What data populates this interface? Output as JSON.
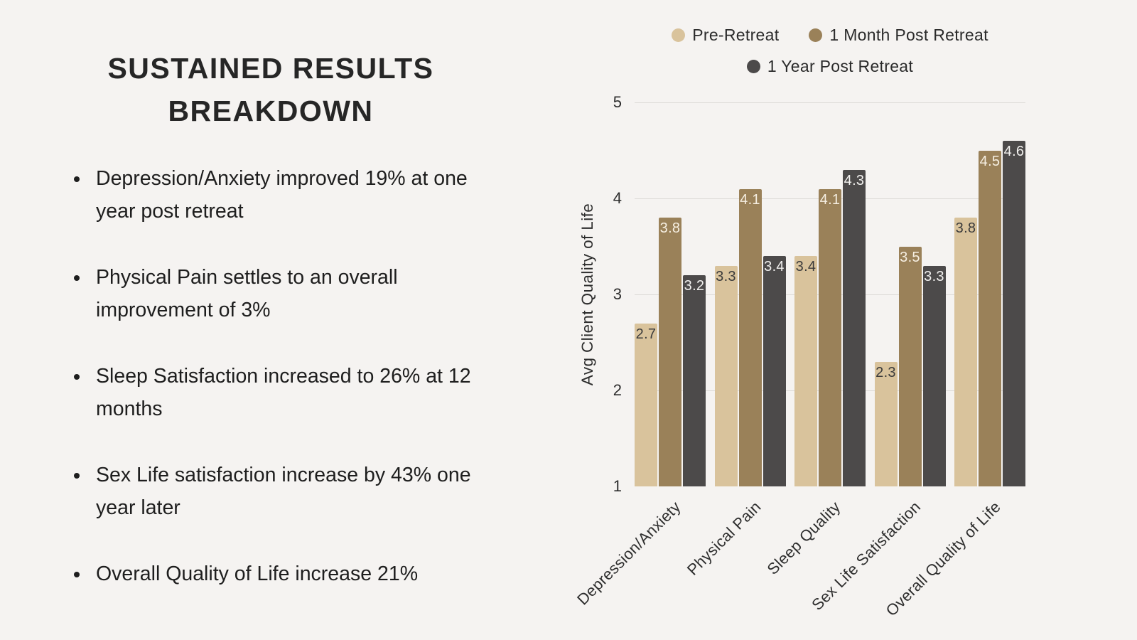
{
  "page": {
    "background": "#f5f3f1"
  },
  "left_panel": {
    "title_line1": "SUSTAINED RESULTS",
    "title_line2": "BREAKDOWN",
    "bullets": [
      "Depression/Anxiety improved 19% at one year post retreat",
      "Physical Pain settles to an overall improvement of 3%",
      "Sleep Satisfaction increased to 26% at 12 months",
      "Sex Life satisfaction increase by 43% one year later",
      "Overall Quality of Life increase 21%"
    ]
  },
  "chart_data": {
    "type": "bar",
    "title": "",
    "xlabel": "",
    "ylabel": "Avg Client Quality of Life",
    "categories": [
      "Depression/Anxiety",
      "Physical Pain",
      "Sleep Quality",
      "Sex Life Satisfaction",
      "Overall Quality of Life"
    ],
    "series": [
      {
        "name": "Pre-Retreat",
        "color": "#d9c39c",
        "label_color": "#3b3b3b",
        "values": [
          2.7,
          3.3,
          3.4,
          2.3,
          3.8
        ]
      },
      {
        "name": "1 Month Post Retreat",
        "color": "#9a8159",
        "label_color": "#f6efe2",
        "values": [
          3.8,
          4.1,
          4.1,
          3.5,
          4.5
        ]
      },
      {
        "name": "1 Year Post Retreat",
        "color": "#4c4a4a",
        "label_color": "#f2f1ef",
        "values": [
          3.2,
          3.4,
          4.3,
          3.3,
          4.6
        ]
      }
    ],
    "ylim": [
      1,
      5
    ],
    "yticks": [
      1,
      2,
      3,
      4,
      5
    ],
    "grid": true,
    "legend_position": "top",
    "gridline_color": "#dcdad7"
  }
}
